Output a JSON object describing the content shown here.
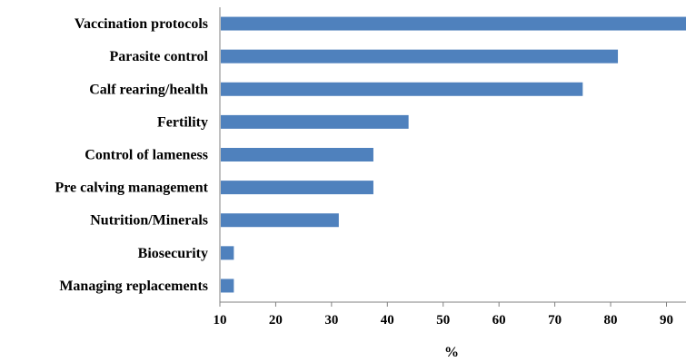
{
  "chart_data": {
    "type": "bar",
    "orientation": "horizontal",
    "categories": [
      "Vaccination protocols",
      "Parasite control",
      "Calf rearing/health",
      "Fertility",
      "Control of lameness",
      "Pre calving management",
      "Nutrition/Minerals",
      "Biosecurity",
      "Managing replacements"
    ],
    "values": [
      93.5,
      81.3,
      75.0,
      43.8,
      37.5,
      37.5,
      31.3,
      12.5,
      12.5
    ],
    "xlim": [
      10,
      93.5
    ],
    "xticks": [
      "10",
      "20",
      "30",
      "40",
      "50",
      "60",
      "70",
      "80",
      "90"
    ],
    "xlabel": "%",
    "ylabel": "",
    "title": "",
    "bar_color": "#4F81BD",
    "grid": false
  }
}
